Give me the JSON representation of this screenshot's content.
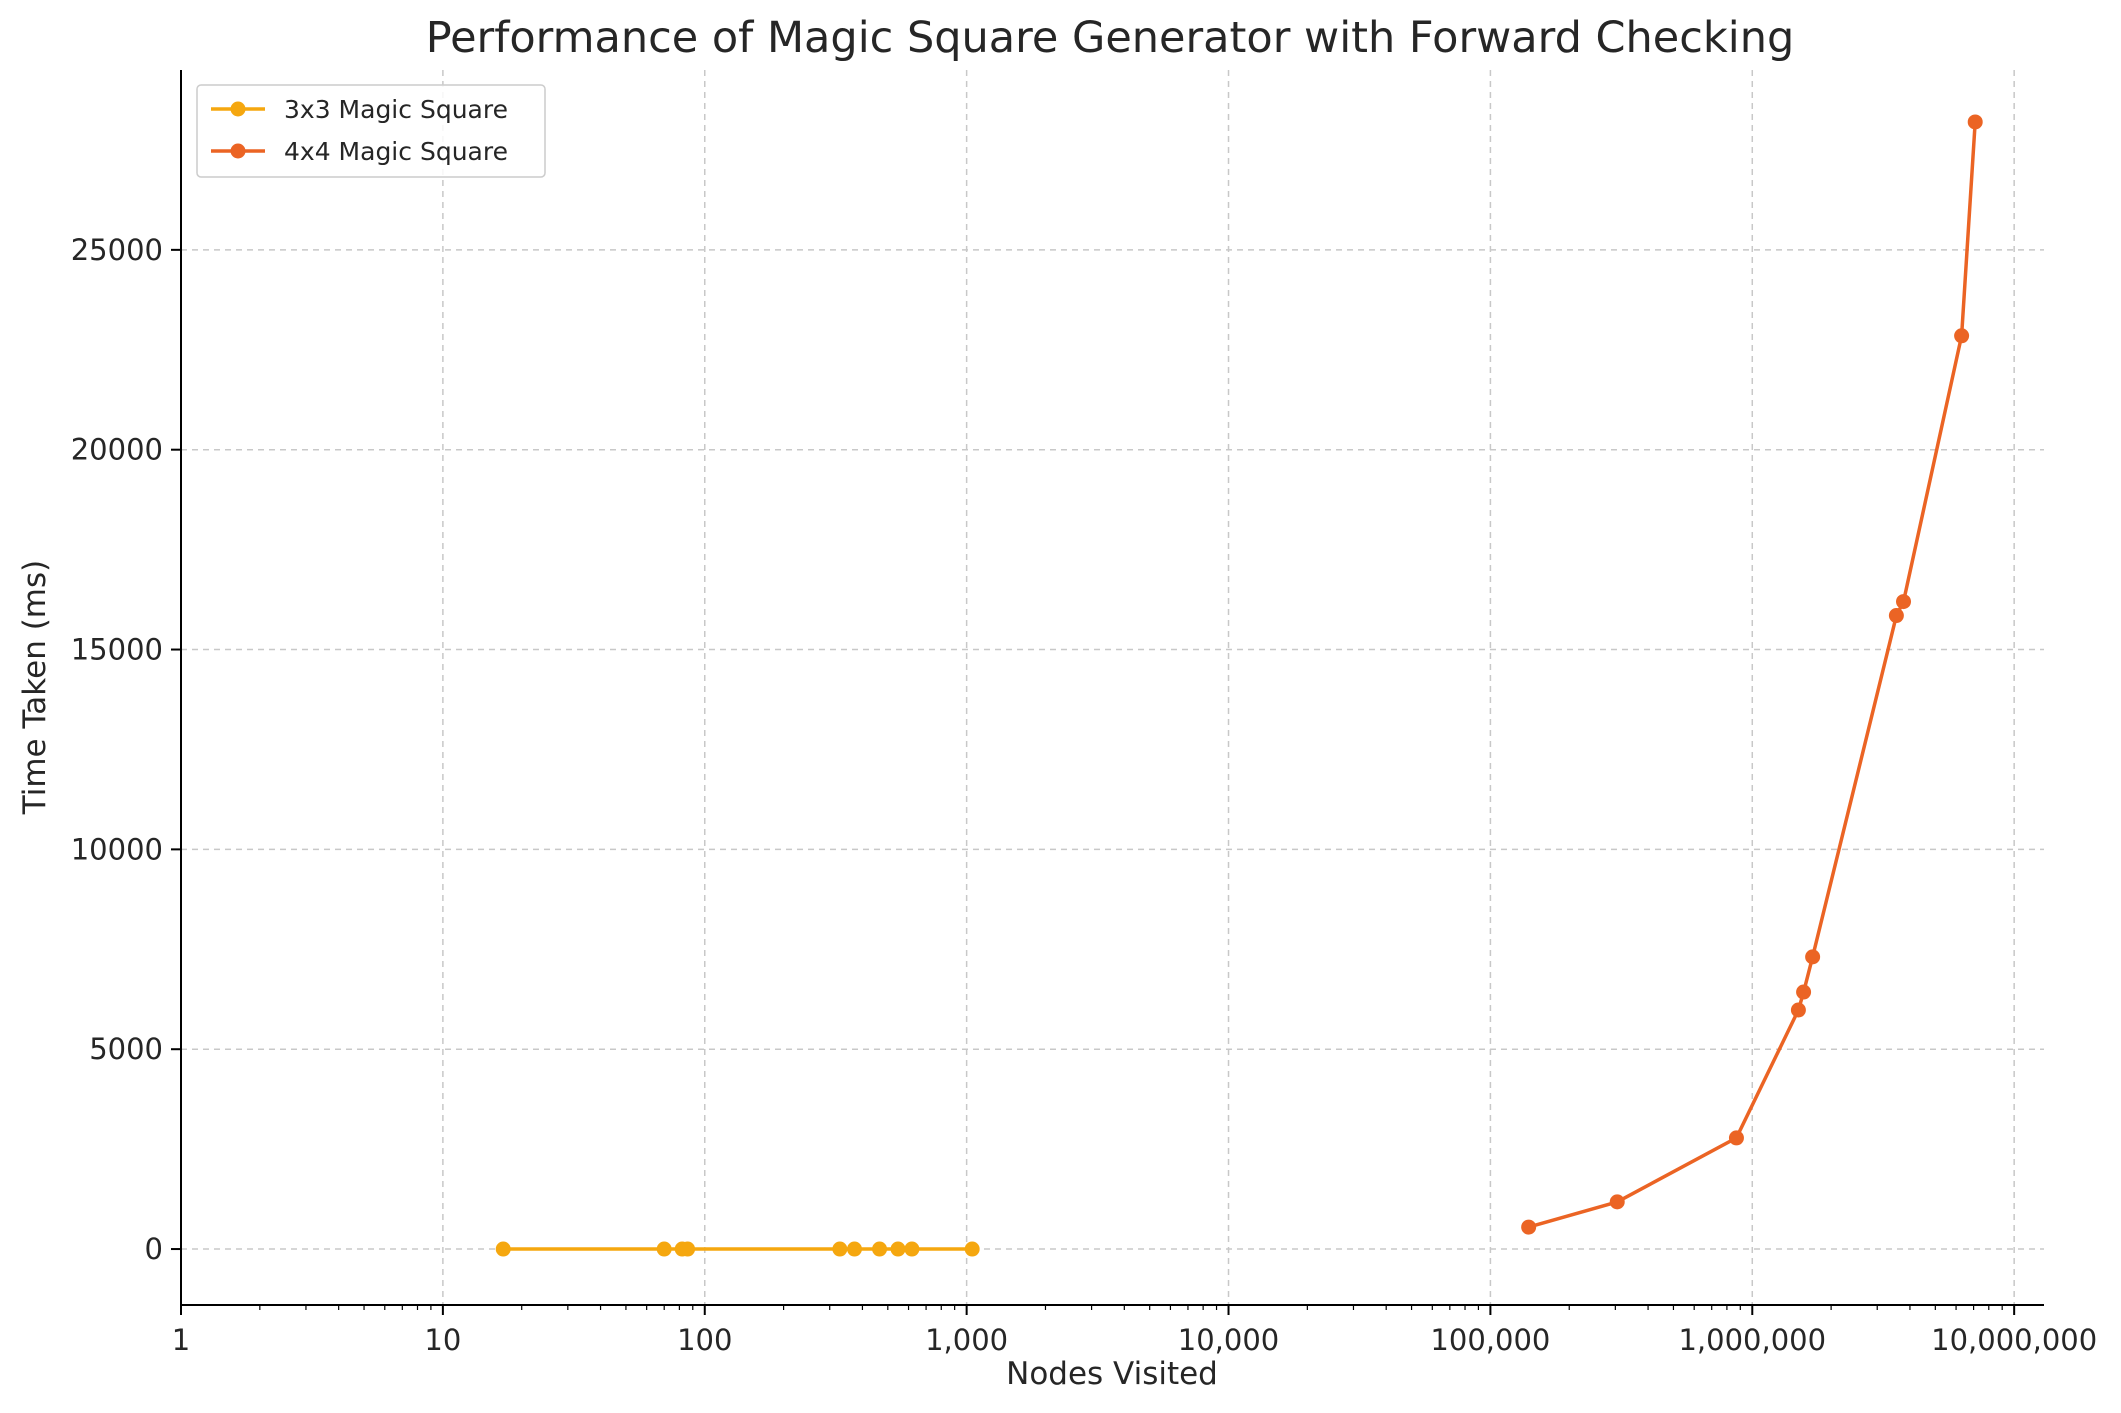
{
  "chart_data": {
    "type": "line",
    "title": "Performance of Magic Square Generator with Forward Checking",
    "xlabel": "Nodes Visited",
    "ylabel": "Time Taken (ms)",
    "x_scale": "log",
    "xlim": [
      1,
      13000000
    ],
    "ylim": [
      -1400,
      29500
    ],
    "grid": true,
    "legend_position": "top-left",
    "x_ticks": [
      {
        "value": 1,
        "label": "1"
      },
      {
        "value": 10,
        "label": "10"
      },
      {
        "value": 100,
        "label": "100"
      },
      {
        "value": 1000,
        "label": "1,000"
      },
      {
        "value": 10000,
        "label": "10,000"
      },
      {
        "value": 100000,
        "label": "100,000"
      },
      {
        "value": 1000000,
        "label": "1,000,000"
      },
      {
        "value": 10000000,
        "label": "10,000,000"
      }
    ],
    "y_ticks": [
      {
        "value": 0,
        "label": "0"
      },
      {
        "value": 5000,
        "label": "5000"
      },
      {
        "value": 10000,
        "label": "10000"
      },
      {
        "value": 15000,
        "label": "15000"
      },
      {
        "value": 20000,
        "label": "20000"
      },
      {
        "value": 25000,
        "label": "25000"
      }
    ],
    "series": [
      {
        "name": "3x3 Magic Square",
        "color": "#F5A70F",
        "x": [
          17,
          70,
          82,
          86,
          328,
          373,
          465,
          547,
          618,
          1050
        ],
        "y": [
          0,
          0,
          0,
          0,
          0,
          0,
          0,
          0,
          0,
          0
        ]
      },
      {
        "name": "4x4 Magic Square",
        "color": "#EB6424",
        "x": [
          140000,
          305000,
          870000,
          1500000,
          1570000,
          1700000,
          3550000,
          3780000,
          6300000,
          7100000
        ],
        "y": [
          550,
          1180,
          2780,
          5980,
          6430,
          7310,
          15850,
          16200,
          22850,
          28200
        ]
      }
    ]
  }
}
